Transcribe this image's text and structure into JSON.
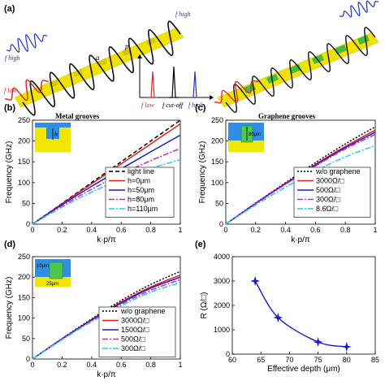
{
  "panel_labels": [
    "(a)",
    "(b)",
    "(c)",
    "(d)",
    "(e)"
  ],
  "schematic": {
    "left_caption": "Metal grooves",
    "right_caption": "Graphene grooves",
    "f_high": "f high",
    "f_low": "f low",
    "f_cutoff": "f cut-off",
    "label_a": "a",
    "label_p": "p",
    "colors": {
      "high": "#2233cc",
      "low": "#dd2222",
      "bar": "#f2e200",
      "graphene": "#3fbf3f",
      "wave": "#111111"
    }
  },
  "chart_data": [
    {
      "id": "b",
      "type": "line",
      "xlabel": "k·p/π",
      "ylabel": "Frequency (GHz)",
      "xlim": [
        0,
        1
      ],
      "ylim": [
        0,
        250
      ],
      "xticks": [
        0,
        0.2,
        0.4,
        0.6,
        0.8,
        1
      ],
      "yticks": [
        0,
        50,
        100,
        150,
        200,
        250
      ],
      "inset_label": "h",
      "legend_position": "bottom-right",
      "series": [
        {
          "name": "light line",
          "color": "#000000",
          "dash": "5,3",
          "x": [
            0,
            0.2,
            0.4,
            0.6,
            0.8,
            1.0
          ],
          "y": [
            0,
            50,
            100,
            150,
            200,
            250
          ]
        },
        {
          "name": "h=0μm",
          "color": "#e02020",
          "dash": "",
          "x": [
            0,
            0.2,
            0.4,
            0.6,
            0.8,
            1.0
          ],
          "y": [
            0,
            49,
            97,
            145,
            193,
            241
          ]
        },
        {
          "name": "h=50μm",
          "color": "#1a1acc",
          "dash": "",
          "x": [
            0,
            0.2,
            0.4,
            0.6,
            0.8,
            1.0
          ],
          "y": [
            0,
            47,
            91,
            133,
            174,
            214
          ]
        },
        {
          "name": "h=80μm",
          "color": "#d020d0",
          "dash": "7,2,2,2",
          "x": [
            0,
            0.2,
            0.4,
            0.6,
            0.8,
            1.0
          ],
          "y": [
            0,
            44,
            84,
            120,
            153,
            182
          ]
        },
        {
          "name": "h=110μm",
          "color": "#20d0e0",
          "dash": "7,2,2,2",
          "x": [
            0,
            0.2,
            0.4,
            0.6,
            0.8,
            1.0
          ],
          "y": [
            0,
            41,
            77,
            108,
            134,
            155
          ]
        }
      ]
    },
    {
      "id": "c",
      "type": "line",
      "xlabel": "k·p/π",
      "ylabel": "Frequency (GHz)",
      "xlim": [
        0,
        1
      ],
      "ylim": [
        0,
        250
      ],
      "xticks": [
        0,
        0.2,
        0.4,
        0.6,
        0.8,
        1
      ],
      "yticks": [
        0,
        50,
        100,
        150,
        200,
        250
      ],
      "inset_label": "80μm",
      "legend_position": "bottom-right",
      "series": [
        {
          "name": "w/o graphene",
          "color": "#000000",
          "dash": "2,2",
          "x": [
            0,
            0.2,
            0.4,
            0.6,
            0.8,
            1.0
          ],
          "y": [
            0,
            51,
            100,
            148,
            193,
            234
          ]
        },
        {
          "name": "3000Ω/□",
          "color": "#e02020",
          "dash": "",
          "x": [
            0,
            0.2,
            0.4,
            0.6,
            0.8,
            1.0
          ],
          "y": [
            0,
            50,
            98,
            144,
            187,
            226
          ]
        },
        {
          "name": "500Ω/□",
          "color": "#1a1acc",
          "dash": "",
          "x": [
            0,
            0.2,
            0.4,
            0.6,
            0.8,
            1.0
          ],
          "y": [
            0,
            50,
            97,
            142,
            184,
            221
          ]
        },
        {
          "name": "300Ω/□",
          "color": "#d020d0",
          "dash": "7,2,2,2",
          "x": [
            0,
            0.2,
            0.4,
            0.6,
            0.8,
            1.0
          ],
          "y": [
            0,
            49,
            96,
            140,
            181,
            216
          ]
        },
        {
          "name": "8.6Ω/□",
          "color": "#20d0e0",
          "dash": "7,2,2,2",
          "x": [
            0,
            0.2,
            0.4,
            0.6,
            0.8,
            1.0
          ],
          "y": [
            0,
            46,
            89,
            128,
            162,
            189
          ]
        }
      ]
    },
    {
      "id": "d",
      "type": "line",
      "xlabel": "k·p/π",
      "ylabel": "Frequency (GHz)",
      "xlim": [
        0,
        1
      ],
      "ylim": [
        0,
        250
      ],
      "xticks": [
        0,
        0.2,
        0.4,
        0.6,
        0.8,
        1
      ],
      "yticks": [
        0,
        50,
        100,
        150,
        200,
        250
      ],
      "inset_labels": [
        "10μm",
        "25μm"
      ],
      "legend_position": "bottom-right",
      "series": [
        {
          "name": "w/o graphene",
          "color": "#000000",
          "dash": "2,2",
          "x": [
            0,
            0.2,
            0.4,
            0.6,
            0.8,
            1.0
          ],
          "y": [
            0,
            50,
            98,
            143,
            182,
            214
          ]
        },
        {
          "name": "3000Ω/□",
          "color": "#e02020",
          "dash": "",
          "x": [
            0,
            0.2,
            0.4,
            0.6,
            0.8,
            1.0
          ],
          "y": [
            0,
            49,
            96,
            139,
            176,
            205
          ]
        },
        {
          "name": "1500Ω/□",
          "color": "#1a1acc",
          "dash": "",
          "x": [
            0,
            0.2,
            0.4,
            0.6,
            0.8,
            1.0
          ],
          "y": [
            0,
            49,
            95,
            137,
            173,
            200
          ]
        },
        {
          "name": "500Ω/□",
          "color": "#d020d0",
          "dash": "7,2,2,2",
          "x": [
            0,
            0.2,
            0.4,
            0.6,
            0.8,
            1.0
          ],
          "y": [
            0,
            48,
            93,
            134,
            168,
            194
          ]
        },
        {
          "name": "300Ω/□",
          "color": "#20d0e0",
          "dash": "7,2,2,2",
          "x": [
            0,
            0.2,
            0.4,
            0.6,
            0.8,
            1.0
          ],
          "y": [
            0,
            47,
            91,
            130,
            163,
            187
          ]
        }
      ]
    },
    {
      "id": "e",
      "type": "line",
      "xlabel": "Effective depth (μm)",
      "ylabel": "R (Ω/□)",
      "xlim": [
        60,
        85
      ],
      "ylim": [
        0,
        4000
      ],
      "xticks": [
        60,
        65,
        70,
        75,
        80,
        85
      ],
      "yticks": [
        0,
        1000,
        2000,
        3000,
        4000
      ],
      "marker": "star",
      "series": [
        {
          "name": "",
          "color": "#1a1acc",
          "dash": "",
          "x": [
            64,
            68,
            75,
            80
          ],
          "y": [
            3000,
            1500,
            500,
            300
          ]
        }
      ]
    }
  ]
}
